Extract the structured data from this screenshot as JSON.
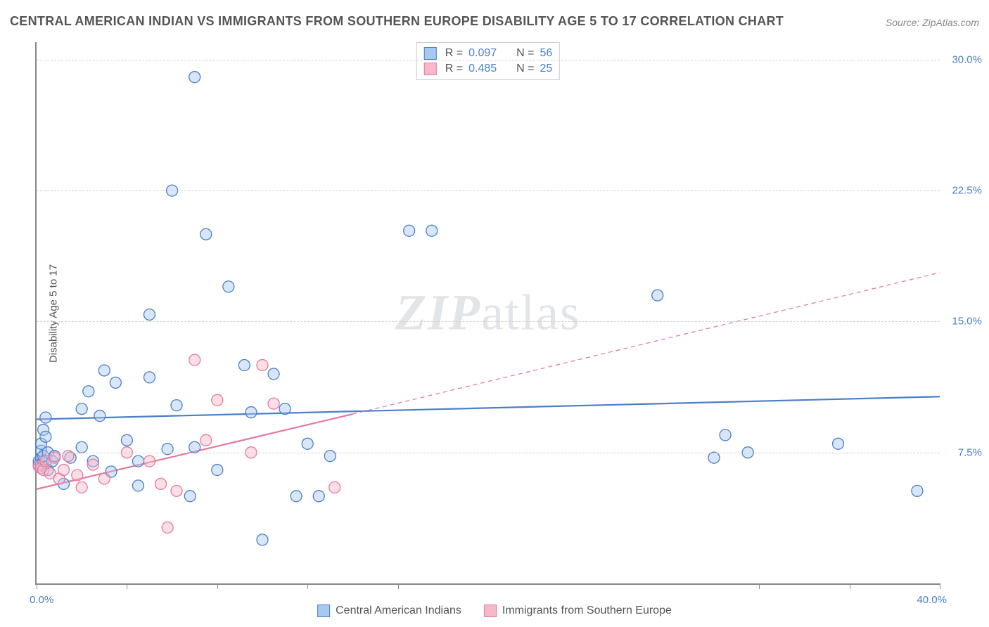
{
  "title": "CENTRAL AMERICAN INDIAN VS IMMIGRANTS FROM SOUTHERN EUROPE DISABILITY AGE 5 TO 17 CORRELATION CHART",
  "source": "Source: ZipAtlas.com",
  "y_axis_label": "Disability Age 5 to 17",
  "watermark_a": "ZIP",
  "watermark_b": "atlas",
  "chart": {
    "type": "scatter",
    "xlim": [
      0,
      40
    ],
    "ylim": [
      0,
      31
    ],
    "x_tick_positions": [
      0,
      4,
      8,
      12,
      16,
      32,
      36,
      40
    ],
    "x_tick_labels": {
      "min": "0.0%",
      "max": "40.0%"
    },
    "y_gridlines": [
      7.5,
      15.0,
      22.5,
      30.0
    ],
    "y_tick_labels": [
      "7.5%",
      "15.0%",
      "22.5%",
      "30.0%"
    ],
    "background_color": "#ffffff",
    "grid_color": "#d0d0d0",
    "axis_color": "#888888",
    "marker_radius": 8,
    "marker_fill_opacity": 0.45,
    "marker_stroke_width": 1.3,
    "series": [
      {
        "id": "central_american_indians",
        "label": "Central American Indians",
        "color_fill": "#a8c8ef",
        "color_stroke": "#4a7fc9",
        "R": "0.097",
        "N": "56",
        "trend": {
          "x1": 0,
          "y1": 9.4,
          "x2": 40,
          "y2": 10.7,
          "solid": true,
          "width": 2.2
        },
        "extend": null,
        "points": [
          [
            0.1,
            6.8
          ],
          [
            0.1,
            7.0
          ],
          [
            0.2,
            6.8
          ],
          [
            0.2,
            7.2
          ],
          [
            0.2,
            7.6
          ],
          [
            0.2,
            8.0
          ],
          [
            0.3,
            7.0
          ],
          [
            0.3,
            7.3
          ],
          [
            0.3,
            8.8
          ],
          [
            0.4,
            8.4
          ],
          [
            0.4,
            9.5
          ],
          [
            0.5,
            6.5
          ],
          [
            0.5,
            7.5
          ],
          [
            0.7,
            7.0
          ],
          [
            0.8,
            7.3
          ],
          [
            1.2,
            5.7
          ],
          [
            1.5,
            7.2
          ],
          [
            2.0,
            10.0
          ],
          [
            2.0,
            7.8
          ],
          [
            2.3,
            11.0
          ],
          [
            2.5,
            7.0
          ],
          [
            2.8,
            9.6
          ],
          [
            3.0,
            12.2
          ],
          [
            3.3,
            6.4
          ],
          [
            3.5,
            11.5
          ],
          [
            4.0,
            8.2
          ],
          [
            4.5,
            5.6
          ],
          [
            4.5,
            7.0
          ],
          [
            5.0,
            11.8
          ],
          [
            5.0,
            15.4
          ],
          [
            5.8,
            7.7
          ],
          [
            6.0,
            22.5
          ],
          [
            6.2,
            10.2
          ],
          [
            6.8,
            5.0
          ],
          [
            7.0,
            29.0
          ],
          [
            7.0,
            7.8
          ],
          [
            7.5,
            20.0
          ],
          [
            8.0,
            6.5
          ],
          [
            8.5,
            17.0
          ],
          [
            9.2,
            12.5
          ],
          [
            9.5,
            9.8
          ],
          [
            10.0,
            2.5
          ],
          [
            10.5,
            12.0
          ],
          [
            11.0,
            10.0
          ],
          [
            11.5,
            5.0
          ],
          [
            12.0,
            8.0
          ],
          [
            12.5,
            5.0
          ],
          [
            13.0,
            7.3
          ],
          [
            16.5,
            20.2
          ],
          [
            17.5,
            20.2
          ],
          [
            27.5,
            16.5
          ],
          [
            30.0,
            7.2
          ],
          [
            30.5,
            8.5
          ],
          [
            31.5,
            7.5
          ],
          [
            35.5,
            8.0
          ],
          [
            39.0,
            5.3
          ]
        ]
      },
      {
        "id": "immigrants_southern_europe",
        "label": "Immigrants from Southern Europe",
        "color_fill": "#f7b8c9",
        "color_stroke": "#e67a9a",
        "R": "0.485",
        "N": "25",
        "trend": {
          "x1": 0,
          "y1": 5.4,
          "x2": 14,
          "y2": 9.7,
          "solid": true,
          "width": 2.2
        },
        "extend": {
          "x1": 14,
          "y1": 9.7,
          "x2": 40,
          "y2": 17.8,
          "solid": false,
          "width": 1.3
        },
        "points": [
          [
            0.1,
            6.7
          ],
          [
            0.2,
            6.6
          ],
          [
            0.3,
            6.5
          ],
          [
            0.4,
            7.0
          ],
          [
            0.6,
            6.3
          ],
          [
            0.8,
            7.2
          ],
          [
            1.0,
            6.0
          ],
          [
            1.2,
            6.5
          ],
          [
            1.4,
            7.3
          ],
          [
            1.8,
            6.2
          ],
          [
            2.0,
            5.5
          ],
          [
            2.5,
            6.8
          ],
          [
            3.0,
            6.0
          ],
          [
            4.0,
            7.5
          ],
          [
            5.0,
            7.0
          ],
          [
            5.5,
            5.7
          ],
          [
            5.8,
            3.2
          ],
          [
            6.2,
            5.3
          ],
          [
            7.0,
            12.8
          ],
          [
            7.5,
            8.2
          ],
          [
            8.0,
            10.5
          ],
          [
            9.5,
            7.5
          ],
          [
            10.0,
            12.5
          ],
          [
            10.5,
            10.3
          ],
          [
            13.2,
            5.5
          ]
        ]
      }
    ]
  }
}
